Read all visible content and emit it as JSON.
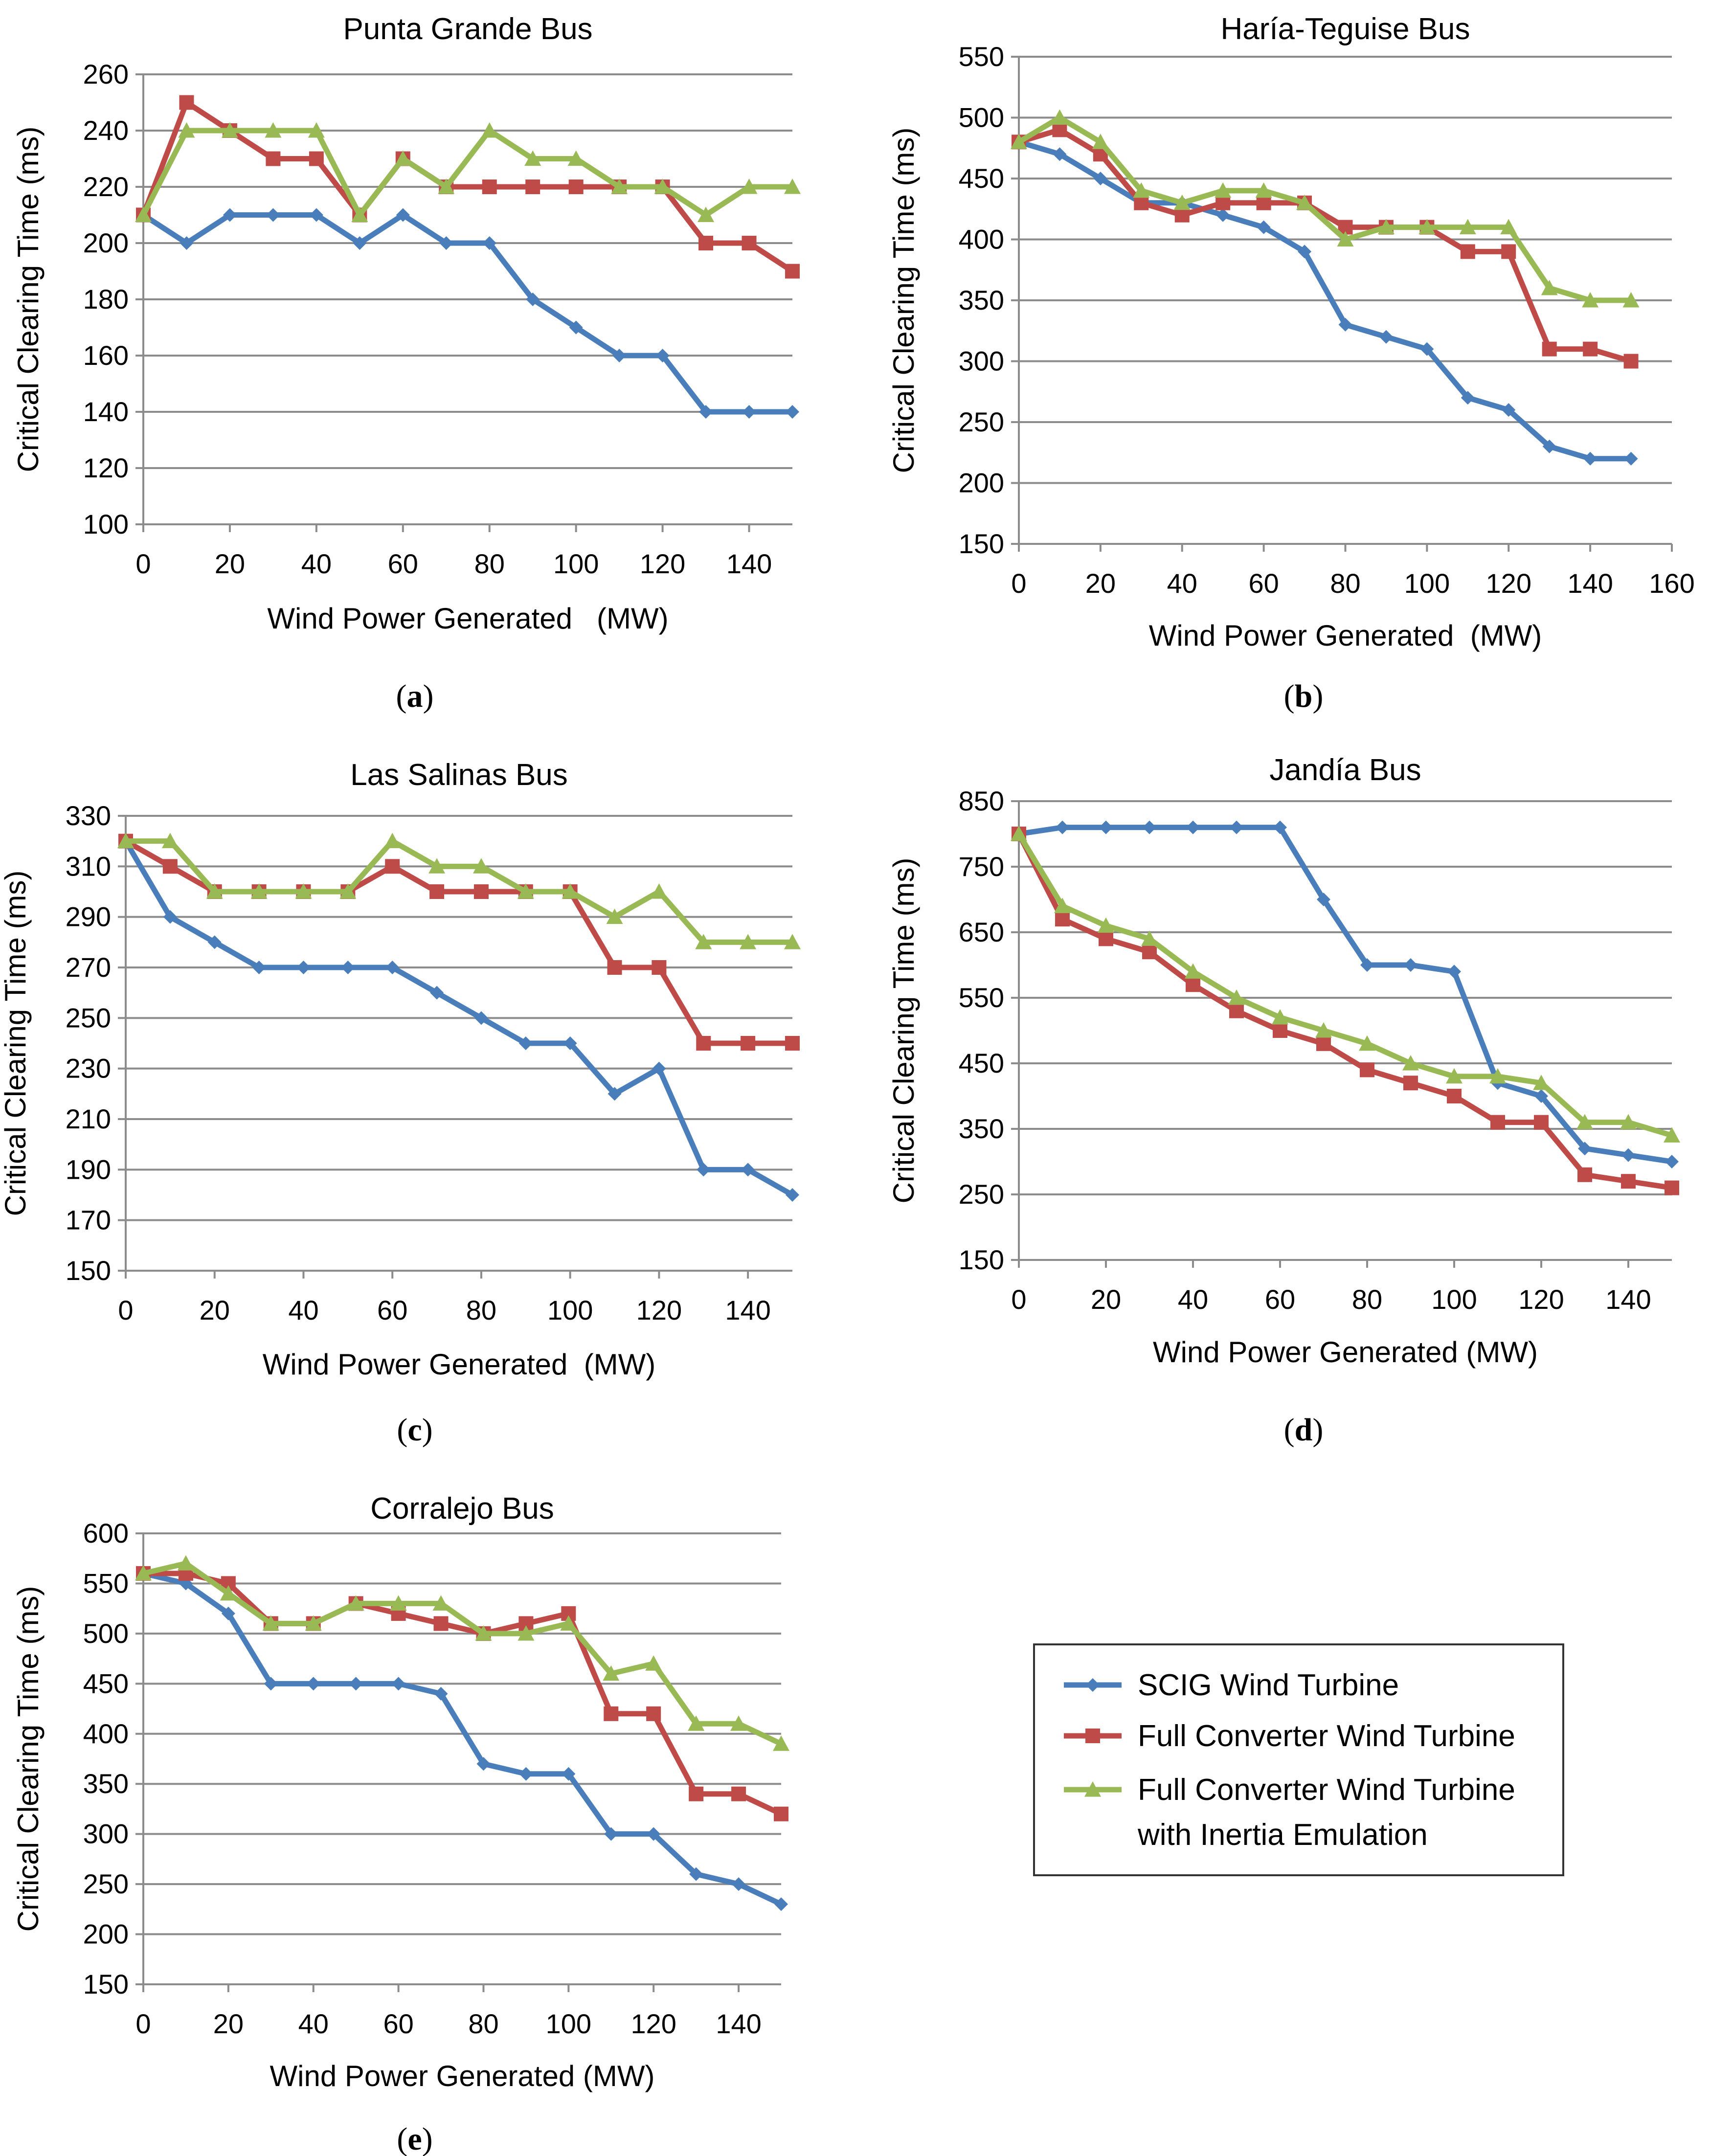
{
  "series_styles": [
    {
      "key": "scig",
      "color": "#4a7ebb",
      "marker": "diamond"
    },
    {
      "key": "full",
      "color": "#be4b48",
      "marker": "square"
    },
    {
      "key": "inertia",
      "color": "#98b954",
      "marker": "triangle"
    }
  ],
  "legend": {
    "items": [
      {
        "lines": [
          "SCIG Wind Turbine"
        ]
      },
      {
        "lines": [
          "Full Converter Wind Turbine"
        ]
      },
      {
        "lines": [
          "Full Converter Wind Turbine",
          "with Inertia Emulation"
        ]
      }
    ]
  },
  "chart_data": [
    {
      "type": "line",
      "title": "Punta Grande Bus",
      "xlabel": "Wind Power Generated   (MW)",
      "ylabel": "Critical Clearing Time (ms)",
      "caption": "a",
      "xlim": [
        0,
        150
      ],
      "xticks": [
        0,
        20,
        40,
        60,
        80,
        100,
        120,
        140
      ],
      "ylim": [
        100,
        260
      ],
      "yticks": [
        100,
        120,
        140,
        160,
        180,
        200,
        220,
        240,
        260
      ],
      "x": [
        0,
        10,
        20,
        30,
        40,
        50,
        60,
        70,
        80,
        90,
        100,
        110,
        120,
        130,
        140,
        150
      ],
      "series": [
        {
          "name": "SCIG Wind Turbine",
          "values": [
            210,
            200,
            210,
            210,
            210,
            200,
            210,
            200,
            200,
            180,
            170,
            160,
            160,
            140,
            140,
            140
          ]
        },
        {
          "name": "Full Converter Wind Turbine",
          "values": [
            210,
            250,
            240,
            230,
            230,
            210,
            230,
            220,
            220,
            220,
            220,
            220,
            220,
            200,
            200,
            190
          ]
        },
        {
          "name": "Full Converter Wind Turbine with Inertia Emulation",
          "values": [
            210,
            240,
            240,
            240,
            240,
            210,
            230,
            220,
            240,
            230,
            230,
            220,
            220,
            210,
            220,
            220
          ]
        }
      ]
    },
    {
      "type": "line",
      "title": "Haría-Teguise Bus",
      "xlabel": "Wind Power Generated  (MW)",
      "ylabel": "Critical Clearing Time (ms)",
      "caption": "b",
      "xlim": [
        0,
        160
      ],
      "xticks": [
        0,
        20,
        40,
        60,
        80,
        100,
        120,
        140,
        160
      ],
      "ylim": [
        150,
        550
      ],
      "yticks": [
        150,
        200,
        250,
        300,
        350,
        400,
        450,
        500,
        550
      ],
      "x": [
        0,
        10,
        20,
        30,
        40,
        50,
        60,
        70,
        80,
        90,
        100,
        110,
        120,
        130,
        140,
        150
      ],
      "series": [
        {
          "name": "SCIG Wind Turbine",
          "values": [
            480,
            470,
            450,
            430,
            430,
            420,
            410,
            390,
            330,
            320,
            310,
            270,
            260,
            230,
            220,
            220
          ]
        },
        {
          "name": "Full Converter Wind Turbine",
          "values": [
            480,
            490,
            470,
            430,
            420,
            430,
            430,
            430,
            410,
            410,
            410,
            390,
            390,
            310,
            310,
            300
          ]
        },
        {
          "name": "Full Converter Wind Turbine with Inertia Emulation",
          "values": [
            480,
            500,
            480,
            440,
            430,
            440,
            440,
            430,
            400,
            410,
            410,
            410,
            410,
            360,
            350,
            350
          ]
        }
      ]
    },
    {
      "type": "line",
      "title": "Las Salinas Bus",
      "xlabel": "Wind Power Generated  (MW)",
      "ylabel": "Critical Clearing Time (ms)",
      "caption": "c",
      "xlim": [
        0,
        150
      ],
      "xticks": [
        0,
        20,
        40,
        60,
        80,
        100,
        120,
        140
      ],
      "ylim": [
        150,
        330
      ],
      "yticks": [
        150,
        170,
        190,
        210,
        230,
        250,
        270,
        290,
        310,
        330
      ],
      "x": [
        0,
        10,
        20,
        30,
        40,
        50,
        60,
        70,
        80,
        90,
        100,
        110,
        120,
        130,
        140,
        150
      ],
      "series": [
        {
          "name": "SCIG Wind Turbine",
          "values": [
            320,
            290,
            280,
            270,
            270,
            270,
            270,
            260,
            250,
            240,
            240,
            220,
            230,
            190,
            190,
            180
          ]
        },
        {
          "name": "Full Converter Wind Turbine",
          "values": [
            320,
            310,
            300,
            300,
            300,
            300,
            310,
            300,
            300,
            300,
            300,
            270,
            270,
            240,
            240,
            240
          ]
        },
        {
          "name": "Full Converter Wind Turbine with Inertia Emulation",
          "values": [
            320,
            320,
            300,
            300,
            300,
            300,
            320,
            310,
            310,
            300,
            300,
            290,
            300,
            280,
            280,
            280
          ]
        }
      ]
    },
    {
      "type": "line",
      "title": "Jandía Bus",
      "xlabel": "Wind Power Generated (MW)",
      "ylabel": "Critical Clearing Time (ms)",
      "caption": "d",
      "xlim": [
        0,
        150
      ],
      "xticks": [
        0,
        20,
        40,
        60,
        80,
        100,
        120,
        140
      ],
      "ylim": [
        150,
        850
      ],
      "yticks": [
        150,
        250,
        350,
        450,
        550,
        650,
        750,
        850
      ],
      "x": [
        0,
        10,
        20,
        30,
        40,
        50,
        60,
        70,
        80,
        90,
        100,
        110,
        120,
        130,
        140,
        150
      ],
      "series": [
        {
          "name": "SCIG Wind Turbine",
          "values": [
            800,
            810,
            810,
            810,
            810,
            810,
            810,
            700,
            600,
            600,
            590,
            420,
            400,
            320,
            310,
            300
          ]
        },
        {
          "name": "Full Converter Wind Turbine",
          "values": [
            800,
            670,
            640,
            620,
            570,
            530,
            500,
            480,
            440,
            420,
            400,
            360,
            360,
            280,
            270,
            260
          ]
        },
        {
          "name": "Full Converter Wind Turbine with Inertia Emulation",
          "values": [
            800,
            690,
            660,
            640,
            590,
            550,
            520,
            500,
            480,
            450,
            430,
            430,
            420,
            360,
            360,
            340
          ]
        }
      ]
    },
    {
      "type": "line",
      "title": "Corralejo Bus",
      "xlabel": "Wind Power Generated (MW)",
      "ylabel": "Critical Clearing Time (ms)",
      "caption": "e",
      "xlim": [
        0,
        150
      ],
      "xticks": [
        0,
        20,
        40,
        60,
        80,
        100,
        120,
        140
      ],
      "ylim": [
        150,
        600
      ],
      "yticks": [
        150,
        200,
        250,
        300,
        350,
        400,
        450,
        500,
        550,
        600
      ],
      "x": [
        0,
        10,
        20,
        30,
        40,
        50,
        60,
        70,
        80,
        90,
        100,
        110,
        120,
        130,
        140,
        150
      ],
      "series": [
        {
          "name": "SCIG Wind Turbine",
          "values": [
            560,
            550,
            520,
            450,
            450,
            450,
            450,
            440,
            370,
            360,
            360,
            300,
            300,
            260,
            250,
            230
          ]
        },
        {
          "name": "Full Converter Wind Turbine",
          "values": [
            560,
            560,
            550,
            510,
            510,
            530,
            520,
            510,
            500,
            510,
            520,
            420,
            420,
            340,
            340,
            320
          ]
        },
        {
          "name": "Full Converter Wind Turbine with Inertia Emulation",
          "values": [
            560,
            570,
            540,
            510,
            510,
            530,
            530,
            530,
            500,
            500,
            510,
            460,
            470,
            410,
            410,
            390
          ]
        }
      ]
    }
  ]
}
